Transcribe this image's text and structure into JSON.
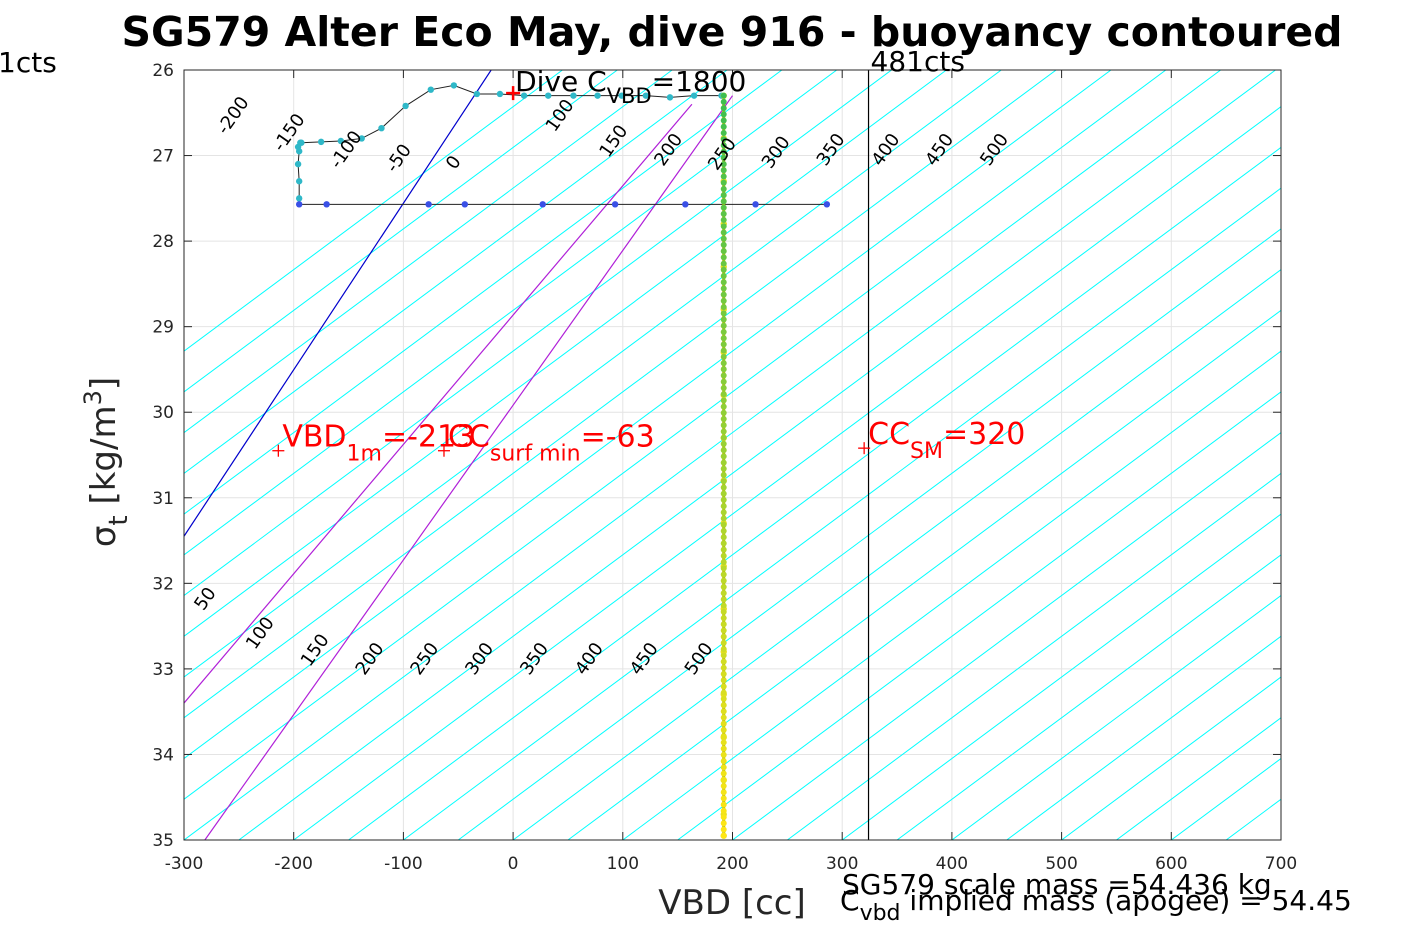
{
  "chart_data": {
    "type": "line",
    "title": "SG579 Alter Eco May, dive 916 - buoyancy contoured",
    "xlabel": "VBD [cc]",
    "ylabel_main": "σ",
    "ylabel_sub": "t",
    "ylabel_unit": "[kg/m",
    "ylabel_sup": "3",
    "ylabel_close": "]",
    "xlim": [
      -300,
      700
    ],
    "ylim": [
      26,
      35
    ],
    "y_reversed": true,
    "grid": true,
    "x_ticks": [
      -300,
      -200,
      -100,
      0,
      100,
      200,
      300,
      400,
      500,
      600,
      700
    ],
    "y_ticks": [
      26,
      27,
      28,
      29,
      30,
      31,
      32,
      33,
      34,
      35
    ],
    "x_tick_labels": [
      "-300",
      "-200",
      "-100",
      "0",
      "100",
      "200",
      "300",
      "400",
      "500",
      "600",
      "700"
    ],
    "y_tick_labels": [
      "26",
      "27",
      "28",
      "29",
      "30",
      "31",
      "32",
      "33",
      "34",
      "35"
    ],
    "upper_contour_labels": [
      {
        "value": -200,
        "text": "-200",
        "x": -251,
        "y": 26.57
      },
      {
        "value": -150,
        "text": "-150",
        "x": -200,
        "y": 26.77
      },
      {
        "value": -100,
        "text": "-100",
        "x": -148,
        "y": 26.97
      },
      {
        "value": -50,
        "text": "-50",
        "x": -100,
        "y": 27.07
      },
      {
        "value": 0,
        "text": "0",
        "x": -50,
        "y": 27.12
      },
      {
        "value": 100,
        "text": "100",
        "x": 47,
        "y": 26.57
      },
      {
        "value": 150,
        "text": "150",
        "x": 96,
        "y": 26.87
      },
      {
        "value": 200,
        "text": "200",
        "x": 146,
        "y": 26.97
      },
      {
        "value": 250,
        "text": "250",
        "x": 195,
        "y": 27.02
      },
      {
        "value": 300,
        "text": "300",
        "x": 244,
        "y": 27.0
      },
      {
        "value": 350,
        "text": "350",
        "x": 294,
        "y": 26.97
      },
      {
        "value": 400,
        "text": "400",
        "x": 344,
        "y": 26.97
      },
      {
        "value": 450,
        "text": "450",
        "x": 393,
        "y": 26.97
      },
      {
        "value": 500,
        "text": "500",
        "x": 443,
        "y": 26.97
      }
    ],
    "lower_contour_labels": [
      {
        "value": 50,
        "text": "50",
        "x": -300,
        "y": 32.22
      },
      {
        "value": 100,
        "text": "100",
        "x": -250,
        "y": 32.62
      },
      {
        "value": 150,
        "text": "150",
        "x": -200,
        "y": 32.82
      },
      {
        "value": 200,
        "text": "200",
        "x": -150,
        "y": 32.92
      },
      {
        "value": 250,
        "text": "250",
        "x": -100,
        "y": 32.92
      },
      {
        "value": 300,
        "text": "300",
        "x": -50,
        "y": 32.92
      },
      {
        "value": 350,
        "text": "350",
        "x": 0,
        "y": 32.92
      },
      {
        "value": 400,
        "text": "400",
        "x": 50,
        "y": 32.92
      },
      {
        "value": 450,
        "text": "450",
        "x": 100,
        "y": 32.92
      },
      {
        "value": 500,
        "text": "500",
        "x": 150,
        "y": 32.92
      }
    ],
    "series": [
      {
        "color": "#202020",
        "point_color": "#2fb8c8",
        "x": [
          -195,
          -195,
          -196,
          -195,
          -196,
          -194,
          -193,
          -175,
          -157,
          -138,
          -120,
          -98,
          -75,
          -54,
          -33,
          -12,
          10,
          32,
          55,
          77,
          99,
          121,
          143,
          165,
          190
        ],
        "y": [
          27.5,
          27.3,
          27.1,
          26.95,
          26.9,
          26.85,
          26.85,
          26.84,
          26.83,
          26.8,
          26.68,
          26.42,
          26.23,
          26.18,
          26.28,
          26.28,
          26.3,
          26.3,
          26.3,
          26.3,
          26.3,
          26.3,
          26.32,
          26.3,
          26.3
        ]
      },
      {
        "color": "#202020",
        "point_color": "#3a50e6",
        "x": [
          -195,
          -170,
          -77,
          -44,
          27,
          93,
          157,
          221,
          286
        ],
        "y": [
          27.57,
          27.57,
          27.57,
          27.57,
          27.57,
          27.57,
          27.57,
          27.57,
          27.57
        ]
      },
      {
        "color": "#b8b800",
        "point_color": "#e8e020",
        "x": [
          192,
          192,
          192,
          192,
          192,
          192,
          192,
          192,
          192,
          192,
          192,
          192,
          192,
          192,
          192,
          192,
          192,
          192,
          192
        ],
        "y": [
          26.3,
          26.8,
          27.3,
          27.8,
          28.3,
          28.8,
          29.3,
          29.8,
          30.3,
          30.8,
          31.3,
          31.8,
          32.3,
          32.8,
          33.3,
          33.8,
          34.3,
          34.7,
          34.95
        ]
      }
    ],
    "vertical_lines": [
      {
        "x": 324,
        "color": "#000000",
        "label": "481cts"
      }
    ],
    "markers": [
      {
        "x": -214,
        "y": 30.45,
        "label_main": "VBD",
        "label_sub": "1m",
        "label_tail": "=-213"
      },
      {
        "x": -63,
        "y": 30.45,
        "label_main": "CC",
        "label_sub": "surf min",
        "label_tail": "=-63"
      },
      {
        "x": 320,
        "y": 30.42,
        "label_main": "CC",
        "label_sub": "SM",
        "label_tail": "=320"
      }
    ],
    "dive_marker": {
      "x": 0,
      "y": 26.27,
      "label_main": "Dive C",
      "label_sub": "VBD",
      "label_tail": "=1800"
    },
    "left_clipped_label": "1cts",
    "footer": {
      "scale_mass": "SG579 scale mass =54.436 kg",
      "implied_main": "C",
      "implied_sub": "vbd",
      "implied_tail": " implied mass (apogee) = 54.45"
    }
  }
}
